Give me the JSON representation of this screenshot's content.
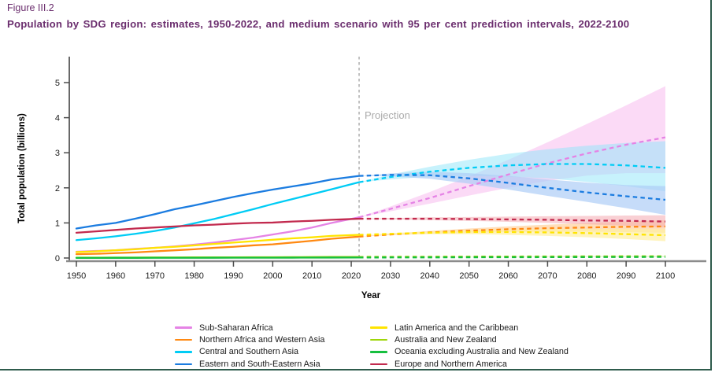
{
  "figure": {
    "label": "Figure III.2",
    "title": "Population by SDG region: estimates, 1950-2022, and medium scenario with 95 per cent prediction intervals, 2022-2100"
  },
  "colors": {
    "title_text": "#6B2E6E",
    "page_border": "#2E5B4C",
    "y_axis": "#4D4D4D",
    "x_axis": "#8C8C8C",
    "tick": "#4D4D4D",
    "projection_divider": "#B3B3B3"
  },
  "chart_data": {
    "type": "line",
    "title": "",
    "xlabel": "Year",
    "ylabel": "Total population (billions)",
    "xlim": [
      1950,
      2100
    ],
    "ylim": [
      0,
      5
    ],
    "xticks": [
      1950,
      1960,
      1970,
      1980,
      1990,
      2000,
      2010,
      2020,
      2030,
      2040,
      2050,
      2060,
      2070,
      2080,
      2090,
      2100
    ],
    "yticks": [
      0,
      1,
      2,
      3,
      4,
      5
    ],
    "grid": false,
    "legend_position": "bottom",
    "legend_columns": 2,
    "projection_divider": {
      "year": 2022,
      "label": "Projection"
    },
    "history_years": [
      1950,
      1955,
      1960,
      1965,
      1970,
      1975,
      1980,
      1985,
      1990,
      1995,
      2000,
      2005,
      2010,
      2015,
      2022
    ],
    "projection_years": [
      2022,
      2030,
      2040,
      2050,
      2060,
      2070,
      2080,
      2090,
      2100
    ],
    "series": [
      {
        "name": "Sub-Saharan Africa",
        "color": "#E583E5",
        "band_color": "#F8BCEF",
        "band_opacity": 0.55,
        "history": [
          0.18,
          0.2,
          0.22,
          0.26,
          0.29,
          0.33,
          0.38,
          0.44,
          0.51,
          0.58,
          0.67,
          0.76,
          0.87,
          1.0,
          1.16
        ],
        "projection": [
          1.16,
          1.4,
          1.71,
          2.05,
          2.38,
          2.7,
          2.98,
          3.23,
          3.44
        ],
        "interval_low": [
          1.16,
          1.33,
          1.55,
          1.78,
          2.0,
          2.2,
          2.35,
          2.42,
          2.42
        ],
        "interval_high": [
          1.16,
          1.47,
          1.88,
          2.33,
          2.8,
          3.3,
          3.82,
          4.35,
          4.9
        ]
      },
      {
        "name": "Northern Africa and Western Asia",
        "color": "#FF8912",
        "band_color": "#FFC98C",
        "band_opacity": 0.6,
        "history": [
          0.11,
          0.12,
          0.14,
          0.16,
          0.19,
          0.22,
          0.25,
          0.29,
          0.32,
          0.36,
          0.39,
          0.44,
          0.49,
          0.55,
          0.61
        ],
        "projection": [
          0.61,
          0.67,
          0.73,
          0.78,
          0.82,
          0.85,
          0.87,
          0.89,
          0.9
        ],
        "interval_low": [
          0.61,
          0.65,
          0.69,
          0.72,
          0.74,
          0.75,
          0.75,
          0.74,
          0.72
        ],
        "interval_high": [
          0.61,
          0.69,
          0.77,
          0.84,
          0.9,
          0.95,
          1.0,
          1.04,
          1.08
        ]
      },
      {
        "name": "Central and Southern Asia",
        "color": "#00CCF5",
        "band_color": "#8FE5FA",
        "band_opacity": 0.5,
        "history": [
          0.51,
          0.56,
          0.62,
          0.69,
          0.77,
          0.87,
          0.99,
          1.11,
          1.25,
          1.39,
          1.54,
          1.68,
          1.82,
          1.96,
          2.16
        ],
        "projection": [
          2.16,
          2.31,
          2.46,
          2.57,
          2.64,
          2.68,
          2.68,
          2.64,
          2.57
        ],
        "interval_low": [
          2.16,
          2.24,
          2.32,
          2.34,
          2.32,
          2.27,
          2.17,
          2.05,
          1.9
        ],
        "interval_high": [
          2.16,
          2.38,
          2.6,
          2.8,
          2.97,
          3.1,
          3.2,
          3.28,
          3.33
        ]
      },
      {
        "name": "Eastern and South-Eastern Asia",
        "color": "#1B7CE0",
        "band_color": "#AECDF6",
        "band_opacity": 0.7,
        "history": [
          0.84,
          0.93,
          1.0,
          1.12,
          1.25,
          1.39,
          1.5,
          1.62,
          1.74,
          1.85,
          1.95,
          2.04,
          2.13,
          2.24,
          2.34
        ],
        "projection": [
          2.34,
          2.37,
          2.36,
          2.27,
          2.14,
          2.0,
          1.87,
          1.76,
          1.66
        ],
        "interval_low": [
          2.34,
          2.33,
          2.26,
          2.12,
          1.95,
          1.77,
          1.6,
          1.42,
          1.23
        ],
        "interval_high": [
          2.34,
          2.41,
          2.46,
          2.42,
          2.34,
          2.24,
          2.15,
          2.08,
          2.05
        ]
      },
      {
        "name": "Latin America and the Caribbean",
        "color": "#FFE400",
        "band_color": "#FFF0A3",
        "band_opacity": 0.7,
        "history": [
          0.17,
          0.19,
          0.22,
          0.25,
          0.29,
          0.32,
          0.36,
          0.4,
          0.44,
          0.48,
          0.52,
          0.56,
          0.59,
          0.63,
          0.66
        ],
        "projection": [
          0.66,
          0.69,
          0.72,
          0.74,
          0.74,
          0.73,
          0.71,
          0.68,
          0.65
        ],
        "interval_low": [
          0.66,
          0.67,
          0.68,
          0.68,
          0.66,
          0.63,
          0.59,
          0.54,
          0.48
        ],
        "interval_high": [
          0.66,
          0.71,
          0.76,
          0.8,
          0.82,
          0.83,
          0.83,
          0.83,
          0.82
        ]
      },
      {
        "name": "Australia and New Zealand",
        "color": "#9ED60A",
        "band_color": "#DDF0A0",
        "band_opacity": 0.6,
        "history": [
          0.01,
          0.011,
          0.013,
          0.014,
          0.015,
          0.017,
          0.018,
          0.019,
          0.02,
          0.022,
          0.023,
          0.025,
          0.027,
          0.029,
          0.031
        ],
        "projection": [
          0.031,
          0.034,
          0.037,
          0.04,
          0.042,
          0.045,
          0.047,
          0.049,
          0.051
        ],
        "interval_low": [
          0.031,
          0.032,
          0.034,
          0.035,
          0.036,
          0.037,
          0.038,
          0.039,
          0.04
        ],
        "interval_high": [
          0.031,
          0.036,
          0.041,
          0.046,
          0.05,
          0.054,
          0.058,
          0.062,
          0.065
        ]
      },
      {
        "name": "Oceania excluding Australia and New Zealand",
        "color": "#16BF3F",
        "band_color": "#B2ECC4",
        "band_opacity": 0.6,
        "history": [
          0.003,
          0.003,
          0.004,
          0.004,
          0.005,
          0.006,
          0.006,
          0.007,
          0.008,
          0.009,
          0.009,
          0.01,
          0.011,
          0.013,
          0.014
        ],
        "projection": [
          0.014,
          0.016,
          0.018,
          0.021,
          0.023,
          0.025,
          0.027,
          0.029,
          0.031
        ],
        "interval_low": [
          0.014,
          0.015,
          0.017,
          0.019,
          0.02,
          0.022,
          0.023,
          0.025,
          0.026
        ],
        "interval_high": [
          0.014,
          0.017,
          0.02,
          0.023,
          0.026,
          0.029,
          0.031,
          0.034,
          0.036
        ]
      },
      {
        "name": "Europe and Northern America",
        "color": "#C22A4E",
        "band_color": "#F4A9B0",
        "band_opacity": 0.55,
        "history": [
          0.72,
          0.76,
          0.8,
          0.84,
          0.87,
          0.9,
          0.93,
          0.95,
          0.98,
          1.0,
          1.01,
          1.04,
          1.06,
          1.09,
          1.12
        ],
        "projection": [
          1.12,
          1.12,
          1.12,
          1.11,
          1.1,
          1.09,
          1.07,
          1.06,
          1.04
        ],
        "interval_low": [
          1.12,
          1.1,
          1.08,
          1.06,
          1.03,
          1.0,
          0.96,
          0.92,
          0.87
        ],
        "interval_high": [
          1.12,
          1.14,
          1.16,
          1.17,
          1.18,
          1.19,
          1.2,
          1.21,
          1.22
        ]
      }
    ]
  }
}
